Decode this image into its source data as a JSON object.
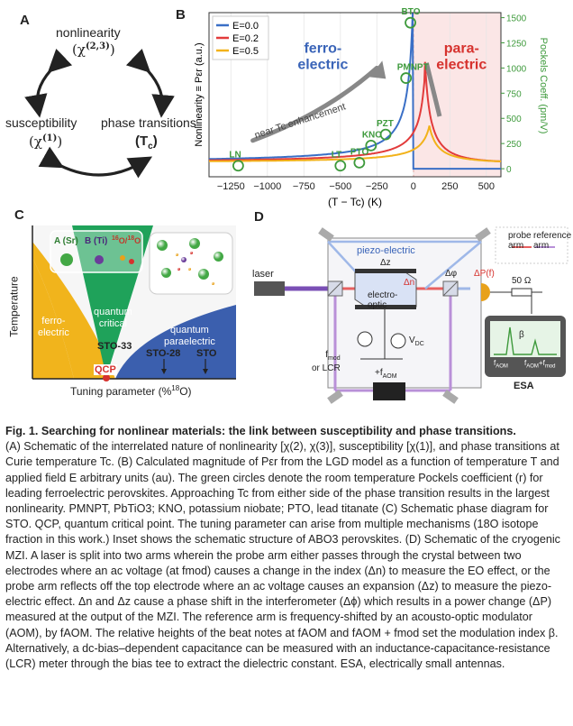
{
  "panelA": {
    "label": "A",
    "nodes": {
      "nonlinearity": "nonlinearity",
      "nonlinearity_sym": "(χ(2,3))",
      "susceptibility": "susceptibility",
      "susceptibility_sym": "(χ(1))",
      "phase": "phase transitions",
      "phase_sym": "(Tc)"
    }
  },
  "panelB": {
    "label": "B",
    "ylabel": "Nonlinearity ≡ Pεr (a.u.)",
    "y2label": "Pockels Coeff. (pm/V)",
    "xlabel": "(T − Tc) (K)",
    "region_ferro": "ferro-\nelectric",
    "region_para": "para-\nelectric",
    "annotation": "near Tc enhancement",
    "legend": [
      "E=0.0",
      "E=0.2",
      "E=0.5"
    ],
    "colors": {
      "E0": "#3a6fc6",
      "E02": "#e23b3b",
      "E05": "#f2b21a",
      "ferro_text": "#3a64b8",
      "para_text": "#d6322e",
      "pockels": "#3e9a3c"
    },
    "xticks": [
      "−1250",
      "−1000",
      "−750",
      "−500",
      "−250",
      "0",
      "250",
      "500"
    ],
    "y2ticks": [
      "0",
      "250",
      "500",
      "750",
      "1000",
      "1250",
      "1500"
    ]
  },
  "chart_data": {
    "type": "scatter",
    "xlabel": "(T − Tc) (K)",
    "ylabel": "Nonlinearity ≡ Pεr (a.u.)",
    "y2label": "Pockels Coeff. (pm/V)",
    "xlim": [
      -1400,
      600
    ],
    "y2lim": [
      -80,
      1550
    ],
    "points": [
      {
        "label": "LN",
        "x": -1200,
        "y": 30
      },
      {
        "label": "LT",
        "x": -500,
        "y": 30
      },
      {
        "label": "PTO",
        "x": -370,
        "y": 60
      },
      {
        "label": "KNO",
        "x": -290,
        "y": 230
      },
      {
        "label": "PZT",
        "x": -190,
        "y": 340
      },
      {
        "label": "PMNPT",
        "x": -50,
        "y": 900
      },
      {
        "label": "BTO",
        "x": -20,
        "y": 1450
      }
    ],
    "series": [
      {
        "name": "E=0.0"
      },
      {
        "name": "E=0.2"
      },
      {
        "name": "E=0.5"
      }
    ],
    "legend": "top-left"
  },
  "panelC": {
    "label": "C",
    "ylabel": "Temperature",
    "xlabel": "Tuning parameter (%18O)",
    "ferro": "ferro-\nelectric",
    "qcrit": "quantum\ncritical",
    "qpara": "quantum\nparaelectric",
    "qcp": "QCP",
    "sto33": "STO-33",
    "sto28": "STO-28",
    "sto": "STO",
    "inset_a": "A (Sr)",
    "inset_b": "B (Ti)",
    "inset_o": "16O/18O"
  },
  "panelD": {
    "label": "D",
    "laser": "laser",
    "piezo": "piezo-electric",
    "dz": "Δz",
    "dn": "Δn",
    "eo": "electro-\noptic",
    "vdc": "VDC",
    "fmod": "fmod\nor LCR",
    "faom": "+fAOM",
    "dphi": "Δφ",
    "dp": "ΔP(f)",
    "ohm": "50 Ω",
    "probe": "probe\narm",
    "reference": "reference\narm",
    "esa": "ESA",
    "beta": "β",
    "esa_f1": "fAOM",
    "esa_f2": "fAOM+fmod"
  },
  "caption": {
    "title": "Fig. 1. Searching for nonlinear materials: the link between susceptibility and phase transitions.",
    "body": "(A) Schematic of the interrelated nature of nonlinearity [χ(2), χ(3)], susceptibility [χ(1)], and phase transitions at Curie temperature Tc. (B) Calculated magnitude of Pεr from the LGD model as a function of temperature T and applied field E arbitrary units (au). The green circles denote the room temperature Pockels coefficient (r) for leading ferroelectric perovskites. Approaching Tc from either side of the phase transition results in the largest nonlinearity. PMNPT, PbTiO3; KNO, potassium niobate; PTO, lead titanate (C) Schematic phase diagram for STO. QCP, quantum critical point. The tuning parameter can arise from multiple mechanisms (18O isotope fraction in this work.) Inset shows the schematic structure of ABO3 perovskites. (D) Schematic of the cryogenic MZI. A laser is split into two arms wherein the probe arm either passes through the crystal between two electrodes where an ac voltage (at fmod) causes a change in the index (Δn) to measure the EO effect, or the probe arm reflects off the top electrode where an ac voltage causes an expansion (Δz) to measure the piezo-electric effect. Δn and Δz cause a phase shift in the interferometer (Δϕ) which results in a power change (ΔP) measured at the output of the MZI. The reference arm is frequency-shifted by an acousto-optic modulator (AOM), by fAOM. The relative heights of the beat notes at fAOM and fAOM + fmod set the modulation index β. Alternatively, a dc-bias–dependent capacitance can be measured with an inductance-capacitance-resistance (LCR) meter through the bias tee to extract the dielectric constant. ESA, electrically small antennas."
  }
}
